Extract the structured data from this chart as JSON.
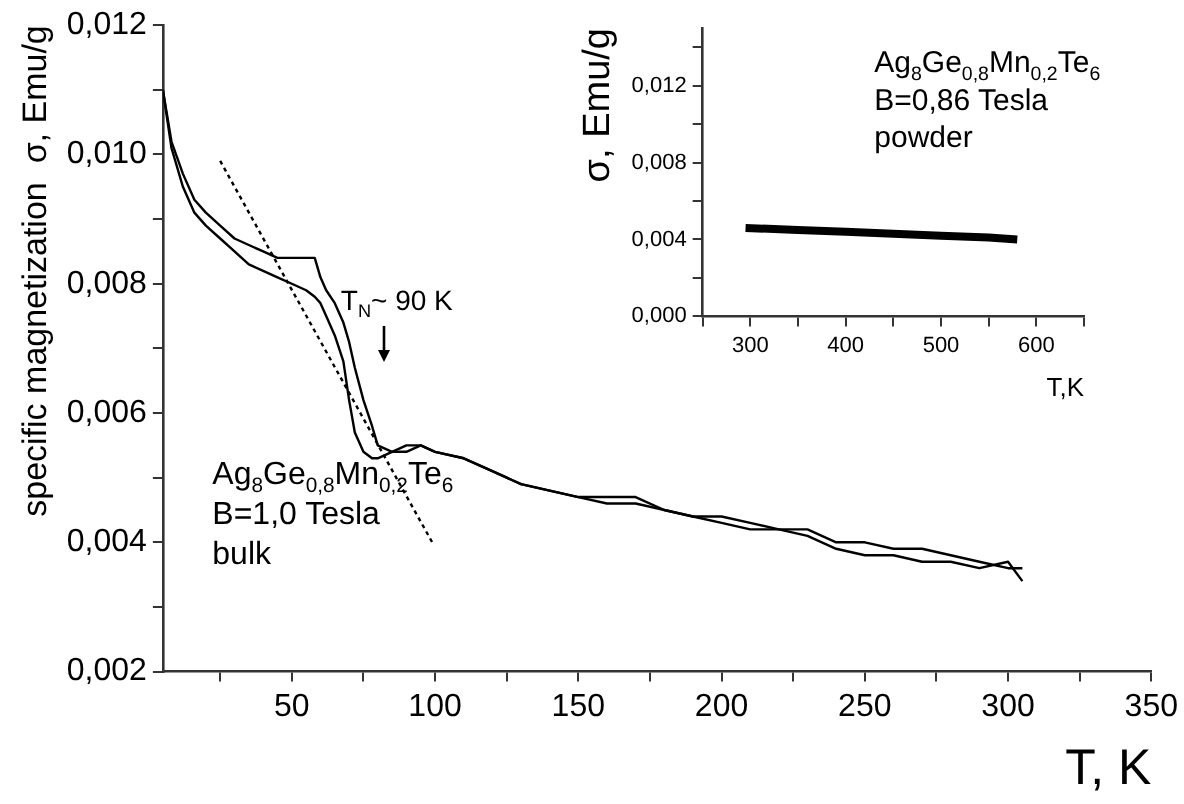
{
  "chart_data": [
    {
      "type": "line",
      "xlabel": "T, K",
      "ylabel": "specific magnetization  σ, Emu/g",
      "xlim": [
        5,
        350
      ],
      "ylim": [
        0.002,
        0.012
      ],
      "xticks": [
        {
          "value": 25,
          "label": null
        },
        50,
        {
          "value": 75,
          "label": null
        },
        100,
        {
          "value": 125,
          "label": null
        },
        150,
        {
          "value": 175,
          "label": null
        },
        200,
        {
          "value": 225,
          "label": null
        },
        250,
        {
          "value": 275,
          "label": null
        },
        300,
        {
          "value": 325,
          "label": null
        },
        350
      ],
      "yticks": [
        {
          "value": 0.002,
          "label": "0,002"
        },
        {
          "value": 0.003,
          "label": null
        },
        {
          "value": 0.004,
          "label": "0,004"
        },
        {
          "value": 0.005,
          "label": null
        },
        {
          "value": 0.006,
          "label": "0,006"
        },
        {
          "value": 0.007,
          "label": null
        },
        {
          "value": 0.008,
          "label": "0,008"
        },
        {
          "value": 0.009,
          "label": null
        },
        {
          "value": 0.01,
          "label": "0,010"
        },
        {
          "value": 0.011,
          "label": null
        },
        {
          "value": 0.012,
          "label": "0,012"
        }
      ],
      "grid": false,
      "legend": false,
      "marker": "none",
      "line_style": "solid",
      "series": [
        {
          "color": "#000000",
          "x": [
            5,
            8,
            12,
            16,
            20,
            25,
            30,
            35,
            40,
            45,
            50,
            55,
            58,
            60,
            62,
            65,
            68,
            70,
            72,
            75,
            78,
            80,
            85,
            90,
            95,
            100,
            110,
            120,
            130,
            140,
            150,
            160,
            170,
            180,
            190,
            200,
            210,
            220,
            230,
            240,
            250,
            260,
            270,
            280,
            290,
            300,
            305
          ],
          "values": [
            0.011,
            0.0102,
            0.0097,
            0.0093,
            0.0091,
            0.0089,
            0.0087,
            0.0086,
            0.0085,
            0.0084,
            0.0084,
            0.0084,
            0.0084,
            0.0081,
            0.0079,
            0.0077,
            0.0074,
            0.0071,
            0.0067,
            0.0062,
            0.0058,
            0.0055,
            0.0054,
            0.0055,
            0.0055,
            0.0054,
            0.0053,
            0.0051,
            0.0049,
            0.0048,
            0.0047,
            0.0047,
            0.0047,
            0.0045,
            0.0044,
            0.0044,
            0.0043,
            0.0042,
            0.0042,
            0.004,
            0.004,
            0.0039,
            0.0039,
            0.0038,
            0.0037,
            0.0036,
            0.0036
          ]
        },
        {
          "color": "#000000",
          "x": [
            5,
            8,
            12,
            16,
            20,
            25,
            30,
            35,
            40,
            45,
            50,
            55,
            58,
            60,
            62,
            65,
            68,
            70,
            72,
            75,
            78,
            80,
            85,
            90,
            95,
            100,
            110,
            120,
            130,
            140,
            150,
            160,
            170,
            180,
            190,
            200,
            210,
            220,
            230,
            240,
            250,
            260,
            270,
            280,
            290,
            300,
            305
          ],
          "values": [
            0.011,
            0.0101,
            0.0095,
            0.0091,
            0.0089,
            0.0087,
            0.0085,
            0.0083,
            0.0082,
            0.0081,
            0.008,
            0.0079,
            0.0078,
            0.0077,
            0.0075,
            0.0072,
            0.0068,
            0.0062,
            0.0057,
            0.0054,
            0.0053,
            0.0053,
            0.0054,
            0.0054,
            0.0055,
            0.0054,
            0.0053,
            0.0051,
            0.0049,
            0.0048,
            0.0047,
            0.0046,
            0.0046,
            0.0045,
            0.0044,
            0.0043,
            0.0042,
            0.0042,
            0.0041,
            0.0039,
            0.0038,
            0.0038,
            0.0037,
            0.0037,
            0.0036,
            0.0037,
            0.0034
          ]
        },
        {
          "type": "line",
          "line_style": "dotted",
          "color": "#000000",
          "x": [
            25,
            99
          ],
          "values": [
            0.0099,
            0.004
          ]
        }
      ],
      "annotations": [
        "T$_{N}$~ 90 K",
        "Ag$_{8}$Ge$_{0,8}$Mn$_{0,2}$Te$_{6}$",
        "B=1,0 Tesla",
        "bulk"
      ]
    },
    {
      "type": "line",
      "xlabel": "T,K",
      "ylabel": "σ, Emu/g",
      "xlim": [
        250,
        650
      ],
      "ylim": [
        0,
        0.015
      ],
      "xticks": [
        {
          "value": 250,
          "label": null
        },
        300,
        {
          "value": 350,
          "label": null
        },
        400,
        {
          "value": 450,
          "label": null
        },
        500,
        {
          "value": 550,
          "label": null
        },
        600,
        {
          "value": 650,
          "label": null
        }
      ],
      "yticks": [
        {
          "value": 0,
          "label": "0,000"
        },
        {
          "value": 0.002,
          "label": null
        },
        {
          "value": 0.004,
          "label": "0,004"
        },
        {
          "value": 0.006,
          "label": null
        },
        {
          "value": 0.008,
          "label": "0,008"
        },
        {
          "value": 0.01,
          "label": null
        },
        {
          "value": 0.012,
          "label": "0,012"
        },
        {
          "value": 0.014,
          "label": null
        }
      ],
      "grid": false,
      "legend": false,
      "marker": "none",
      "line_style": "solid",
      "series": [
        {
          "color": "#000000",
          "x": [
            295,
            350,
            400,
            450,
            500,
            550,
            580
          ],
          "values": [
            0.0046,
            0.0045,
            0.0044,
            0.0043,
            0.0042,
            0.0041,
            0.004
          ]
        }
      ],
      "annotations": [
        "Ag$_{8}$Ge$_{0,8}$Mn$_{0,2}$Te$_{6}$",
        "B=0,86 Tesla",
        "powder"
      ]
    }
  ]
}
